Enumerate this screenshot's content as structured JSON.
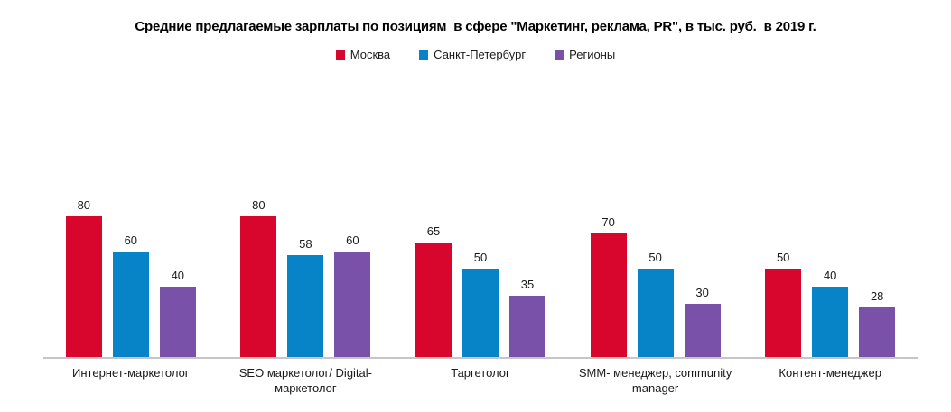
{
  "chart_data": {
    "type": "bar",
    "title": "Средние предлагаемые зарплаты по позициям  в сфере \"Маркетинг, реклама, PR\", в тыс. руб.  в 2019 г.",
    "categories": [
      "Интернет-маркетолог",
      "SEO маркетолог/ Digital-маркетолог",
      "Таргетолог",
      "SMM- менеджер, community manager",
      "Контент-менеджер"
    ],
    "series": [
      {
        "name": "Москва",
        "color": "#d8062d",
        "values": [
          80,
          80,
          65,
          70,
          50
        ]
      },
      {
        "name": "Санкт-Петербург",
        "color": "#0784c7",
        "values": [
          60,
          58,
          50,
          50,
          40
        ]
      },
      {
        "name": "Регионы",
        "color": "#7a51a8",
        "values": [
          40,
          60,
          35,
          30,
          28
        ]
      }
    ],
    "ylim": [
      0,
      80
    ],
    "grid": false,
    "legend_position": "top",
    "value_labels": true,
    "y_axis_visible": false,
    "x_axis_line_color": "#c6c6c6"
  }
}
